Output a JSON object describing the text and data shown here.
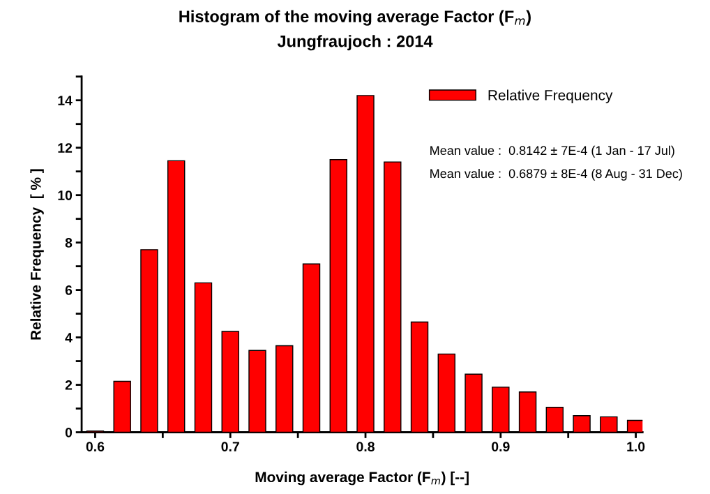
{
  "chart_data": {
    "type": "bar",
    "title": "Histogram of the moving average Factor (F$_{m}$)",
    "subtitle": "Jungfraujoch : 2014",
    "xlabel": "Moving average Factor (F$_{m}$) [--]",
    "ylabel": "Relative Frequency  [ % ]",
    "x": [
      0.6,
      0.62,
      0.64,
      0.66,
      0.68,
      0.7,
      0.72,
      0.74,
      0.76,
      0.78,
      0.8,
      0.82,
      0.84,
      0.86,
      0.88,
      0.9,
      0.92,
      0.94,
      0.96,
      0.98,
      1.0
    ],
    "series": [
      {
        "name": "Relative Frequency",
        "color": "#ff0000",
        "values": [
          0.05,
          2.15,
          7.7,
          11.45,
          6.3,
          4.25,
          3.45,
          3.65,
          7.1,
          11.5,
          14.2,
          11.4,
          4.65,
          3.3,
          2.45,
          1.9,
          1.7,
          1.05,
          0.7,
          0.65,
          0.5
        ]
      }
    ],
    "xlim": [
      0.59,
      1.005
    ],
    "xticks": [
      0.6,
      {
        "value": 0.65,
        "label": null
      },
      0.7,
      {
        "value": 0.75,
        "label": null
      },
      0.8,
      {
        "value": 0.85,
        "label": null
      },
      0.9,
      {
        "value": 0.95,
        "label": null
      },
      {
        "value": 1.0,
        "label": "1.0"
      }
    ],
    "ylim": [
      0,
      15
    ],
    "yticks": [
      0,
      {
        "value": 1,
        "label": null
      },
      2,
      {
        "value": 3,
        "label": null
      },
      4,
      {
        "value": 5,
        "label": null
      },
      6,
      {
        "value": 7,
        "label": null
      },
      8,
      {
        "value": 9,
        "label": null
      },
      10,
      {
        "value": 11,
        "label": null
      },
      12,
      {
        "value": 13,
        "label": null
      },
      14,
      {
        "value": 15,
        "label": null
      }
    ],
    "annotations": [
      "Mean value :  0.8142 ± 7E-4 (1 Jan - 17 Jul)",
      "Mean value :  0.6879 ± 8E-4 (8 Aug - 31 Dec)"
    ],
    "legend": "top right",
    "grid": false
  }
}
